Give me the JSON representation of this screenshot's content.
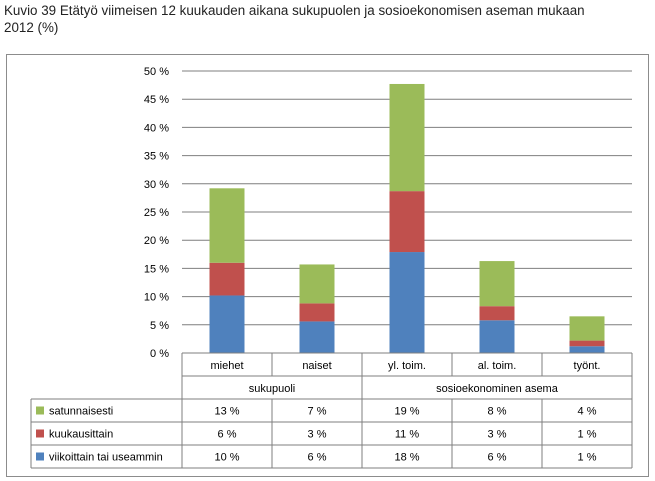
{
  "caption": {
    "line1": "Kuvio 39 Etätyö viimeisen 12 kuukauden aikana sukupuolen ja sosioekonomisen aseman mukaan",
    "line2": "2012 (%)"
  },
  "chart_data": {
    "type": "bar",
    "stacked": true,
    "title": "Kuvio 39 Etätyö viimeisen 12 kuukauden aikana sukupuolen ja sosioekonomisen aseman mukaan 2012 (%)",
    "categories": [
      "miehet",
      "naiset",
      "yl. toim.",
      "al. toim.",
      "työnt."
    ],
    "groups": [
      {
        "label": "sukupuoli",
        "span": 2
      },
      {
        "label": "sosioekonominen asema",
        "span": 3
      }
    ],
    "ylim": [
      0,
      50
    ],
    "yticks": [
      0,
      5,
      10,
      15,
      20,
      25,
      30,
      35,
      40,
      45,
      50
    ],
    "ytick_labels": [
      "0 %",
      "5 %",
      "10 %",
      "15 %",
      "20 %",
      "25 %",
      "30 %",
      "35 %",
      "40 %",
      "45 %",
      "50 %"
    ],
    "grid": true,
    "legend": "data-table",
    "series": [
      {
        "name": "viikoittain tai useammin",
        "color": "#4f81bd",
        "values": [
          10.2,
          5.6,
          17.9,
          5.8,
          1.2
        ],
        "labels": [
          "10 %",
          "6 %",
          "18 %",
          "6 %",
          "1 %"
        ]
      },
      {
        "name": "kuukausittain",
        "color": "#c0504d",
        "values": [
          5.8,
          3.2,
          10.8,
          2.5,
          1.0
        ],
        "labels": [
          "6 %",
          "3 %",
          "11 %",
          "3 %",
          "1 %"
        ]
      },
      {
        "name": "satunnaisesti",
        "color": "#9bbb59",
        "values": [
          13.2,
          6.9,
          19.0,
          8.0,
          4.3
        ],
        "labels": [
          "13 %",
          "7 %",
          "19 %",
          "8 %",
          "4 %"
        ]
      }
    ]
  }
}
